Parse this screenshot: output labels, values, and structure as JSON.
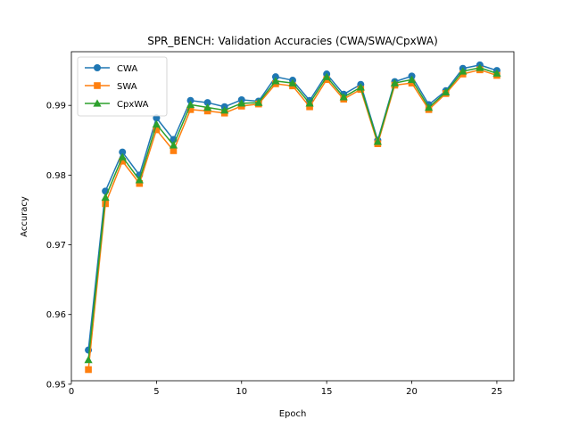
{
  "chart_data": {
    "type": "line",
    "title": "SPR_BENCH: Validation Accuracies (CWA/SWA/CpxWA)",
    "xlabel": "Epoch",
    "ylabel": "Accuracy",
    "xlim": [
      0,
      26
    ],
    "ylim": [
      0.9505,
      0.9977
    ],
    "xticks": [
      0,
      5,
      10,
      15,
      20,
      25
    ],
    "yticks": [
      0.95,
      0.96,
      0.97,
      0.98,
      0.99
    ],
    "grid": false,
    "legend_position": "top-left",
    "x": [
      1,
      2,
      3,
      4,
      5,
      6,
      7,
      8,
      9,
      10,
      11,
      12,
      13,
      14,
      15,
      16,
      17,
      18,
      19,
      20,
      21,
      22,
      23,
      24,
      25
    ],
    "series": [
      {
        "name": "CWA",
        "color": "#1f77b4",
        "marker": "circle",
        "values": [
          0.9549,
          0.9777,
          0.9833,
          0.98,
          0.9882,
          0.9851,
          0.9907,
          0.9904,
          0.9898,
          0.9908,
          0.9906,
          0.9941,
          0.9936,
          0.9907,
          0.9945,
          0.9916,
          0.993,
          0.985,
          0.9934,
          0.9942,
          0.9901,
          0.9921,
          0.9953,
          0.9958,
          0.995
        ]
      },
      {
        "name": "SWA",
        "color": "#ff7f0e",
        "marker": "square",
        "values": [
          0.9521,
          0.9759,
          0.982,
          0.9788,
          0.9865,
          0.9835,
          0.9894,
          0.9892,
          0.9889,
          0.9899,
          0.9902,
          0.9931,
          0.9928,
          0.9898,
          0.9937,
          0.9909,
          0.9923,
          0.9845,
          0.9929,
          0.9932,
          0.9894,
          0.9917,
          0.9945,
          0.9951,
          0.9943
        ]
      },
      {
        "name": "CpxWA",
        "color": "#2ca02c",
        "marker": "triangle",
        "values": [
          0.9535,
          0.9768,
          0.9826,
          0.9793,
          0.9873,
          0.9843,
          0.9901,
          0.9897,
          0.9893,
          0.9903,
          0.9904,
          0.9935,
          0.9932,
          0.9903,
          0.9941,
          0.9912,
          0.9926,
          0.9848,
          0.9932,
          0.9937,
          0.9897,
          0.9919,
          0.9949,
          0.9954,
          0.9946
        ]
      }
    ]
  }
}
